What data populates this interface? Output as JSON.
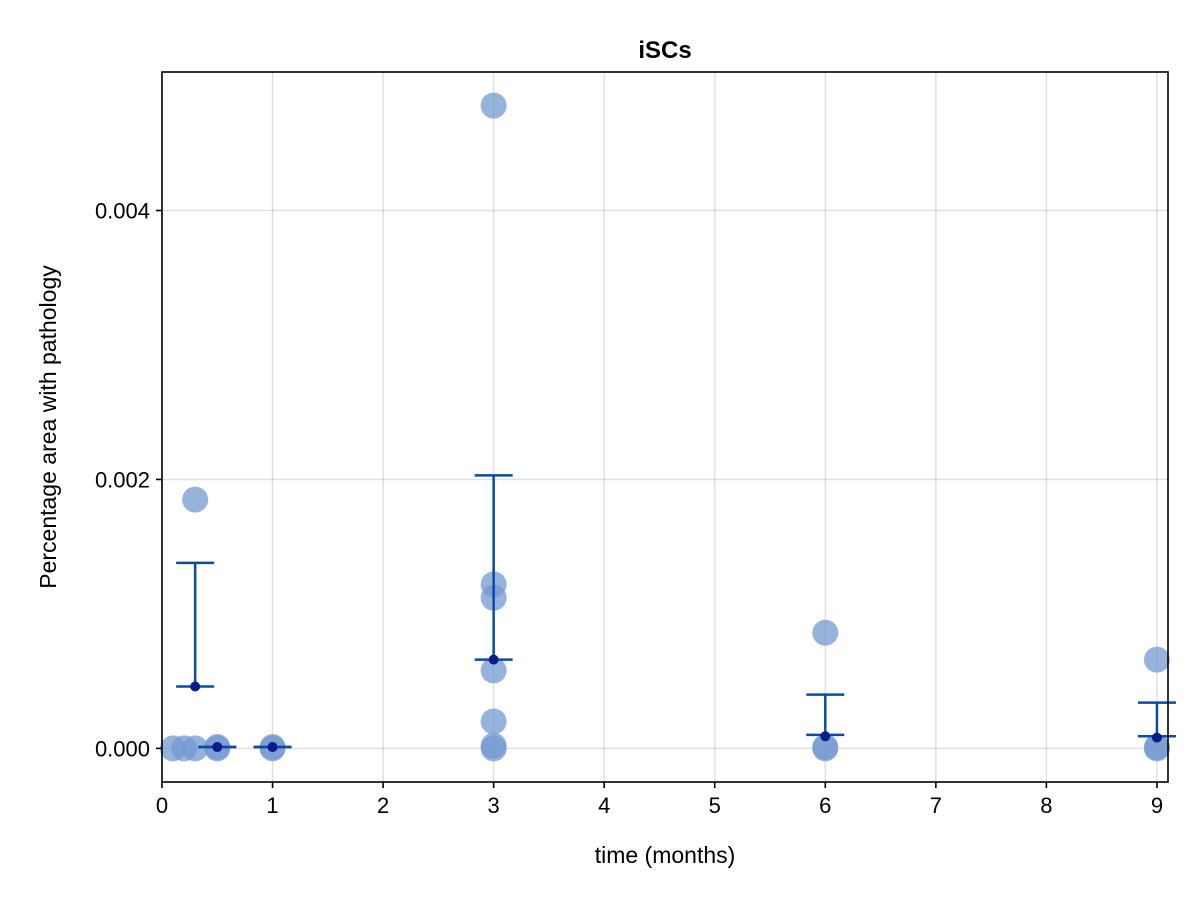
{
  "chart_data": {
    "type": "scatter",
    "title": "iSCs",
    "xlabel": "time (months)",
    "ylabel": "Percentage area with pathology",
    "xlim": [
      0,
      9.1
    ],
    "ylim": [
      -0.00025,
      0.00503
    ],
    "xticks": [
      0,
      1,
      2,
      3,
      4,
      5,
      6,
      7,
      8,
      9
    ],
    "xtick_labels": [
      "0",
      "1",
      "2",
      "3",
      "4",
      "5",
      "6",
      "7",
      "8",
      "9"
    ],
    "yticks": [
      0,
      0.002,
      0.004
    ],
    "ytick_labels": [
      "0.000",
      "0.002",
      "0.004"
    ],
    "grid": true,
    "colors": {
      "points": "#7399d0",
      "errorbar": "#0b4aa6",
      "mean": "#0a1b8c"
    },
    "series": [
      {
        "points": [
          {
            "x": 0.1,
            "y": 0
          },
          {
            "x": 0.2,
            "y": 0
          },
          {
            "x": 0.3,
            "y": 0
          },
          {
            "x": 0.3,
            "y": 0.00185
          },
          {
            "x": 0.5,
            "y": 0
          },
          {
            "x": 0.5,
            "y": 1e-05
          },
          {
            "x": 1,
            "y": 0
          },
          {
            "x": 1,
            "y": 1e-05
          },
          {
            "x": 3,
            "y": 0
          },
          {
            "x": 3,
            "y": 2e-05
          },
          {
            "x": 3,
            "y": 0.0002
          },
          {
            "x": 3,
            "y": 0.00058
          },
          {
            "x": 3,
            "y": 0.00112
          },
          {
            "x": 3,
            "y": 0.00122
          },
          {
            "x": 3,
            "y": 0.00478
          },
          {
            "x": 6,
            "y": 0
          },
          {
            "x": 6,
            "y": 1e-05
          },
          {
            "x": 6,
            "y": 0.00086
          },
          {
            "x": 9,
            "y": 0
          },
          {
            "x": 9,
            "y": 1e-05
          },
          {
            "x": 9,
            "y": 0.00066
          }
        ]
      },
      {
        "errorbars": [
          {
            "x": 0.3,
            "mean": 0.00046,
            "lower": 0.00046,
            "upper": 0.00138
          },
          {
            "x": 0.5,
            "mean": 1e-05,
            "lower": 1e-05,
            "upper": 1e-05
          },
          {
            "x": 1,
            "mean": 1e-05,
            "lower": 1e-05,
            "upper": 1e-05
          },
          {
            "x": 3,
            "mean": 0.00066,
            "lower": 0.00066,
            "upper": 0.00203
          },
          {
            "x": 6,
            "mean": 9e-05,
            "lower": 0.0001,
            "upper": 0.0004
          },
          {
            "x": 9,
            "mean": 8e-05,
            "lower": 9e-05,
            "upper": 0.00034
          }
        ]
      }
    ]
  }
}
